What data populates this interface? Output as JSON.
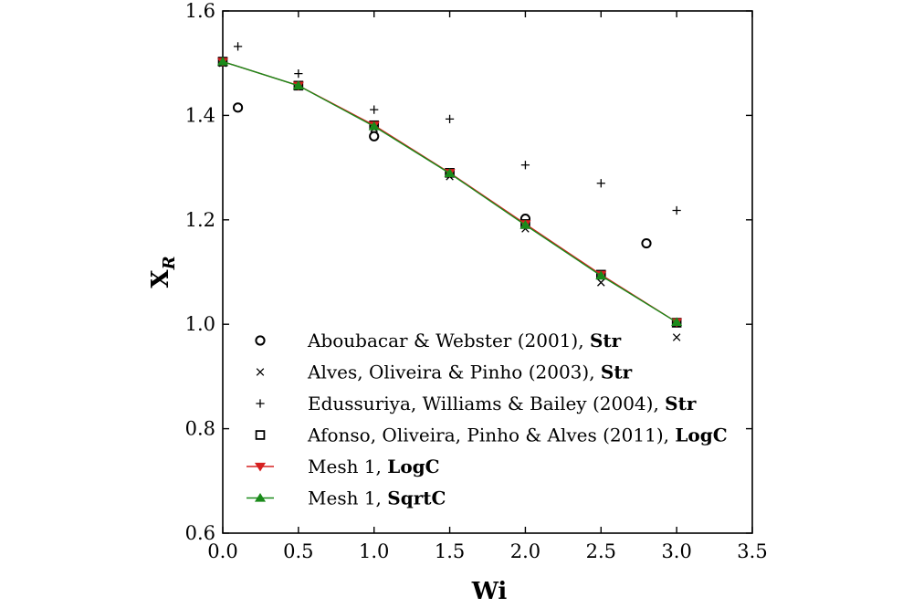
{
  "chart_data": {
    "type": "scatter",
    "xlabel": "Wi",
    "ylabel": "X",
    "ylabel_sub": "R",
    "xlim": [
      0,
      3.5
    ],
    "ylim": [
      0.6,
      1.6
    ],
    "x_ticks": [
      "0.0",
      "0.5",
      "1.0",
      "1.5",
      "2.0",
      "2.5",
      "3.0",
      "3.5"
    ],
    "y_ticks": [
      "0.6",
      "0.8",
      "1.0",
      "1.2",
      "1.4",
      "1.6"
    ],
    "grid": false,
    "legend_position": "lower-left",
    "series": [
      {
        "name": "Aboubacar & Webster (2001), ",
        "name_bold": "Str",
        "marker": "circle",
        "color": "#000000",
        "line": false,
        "points": [
          [
            0.1,
            1.415
          ],
          [
            1.0,
            1.36
          ],
          [
            2.0,
            1.202
          ],
          [
            2.8,
            1.155
          ]
        ]
      },
      {
        "name": "Alves, Oliveira & Pinho (2003), ",
        "name_bold": "Str",
        "marker": "x",
        "color": "#000000",
        "line": false,
        "points": [
          [
            0.0,
            1.5
          ],
          [
            0.5,
            1.457
          ],
          [
            1.0,
            1.375
          ],
          [
            1.5,
            1.283
          ],
          [
            2.0,
            1.183
          ],
          [
            2.5,
            1.08
          ],
          [
            3.0,
            0.975
          ]
        ]
      },
      {
        "name": "Edussuriya, Williams & Bailey (2004), ",
        "name_bold": "Str",
        "marker": "plus",
        "color": "#000000",
        "line": false,
        "points": [
          [
            0.1,
            1.532
          ],
          [
            0.5,
            1.48
          ],
          [
            1.0,
            1.411
          ],
          [
            1.5,
            1.393
          ],
          [
            2.0,
            1.305
          ],
          [
            2.5,
            1.27
          ],
          [
            3.0,
            1.218
          ]
        ]
      },
      {
        "name": "Afonso, Oliveira, Pinho & Alves (2011), ",
        "name_bold": "LogC",
        "marker": "square",
        "color": "#000000",
        "line": false,
        "points": [
          [
            0.0,
            1.503
          ],
          [
            0.5,
            1.457
          ],
          [
            1.0,
            1.381
          ],
          [
            1.5,
            1.29
          ],
          [
            2.0,
            1.192
          ],
          [
            2.5,
            1.095
          ],
          [
            3.0,
            1.003
          ]
        ]
      },
      {
        "name": "Mesh 1, ",
        "name_bold": "LogC",
        "marker": "triangle-down",
        "color": "#d62020",
        "line": true,
        "points": [
          [
            0.0,
            1.503
          ],
          [
            0.5,
            1.457
          ],
          [
            1.0,
            1.381
          ],
          [
            1.5,
            1.29
          ],
          [
            2.0,
            1.192
          ],
          [
            2.5,
            1.095
          ],
          [
            3.0,
            1.004
          ]
        ]
      },
      {
        "name": "Mesh 1, ",
        "name_bold": "SqrtC",
        "marker": "triangle-up",
        "color": "#1a8a1a",
        "line": true,
        "points": [
          [
            0.0,
            1.503
          ],
          [
            0.5,
            1.457
          ],
          [
            1.0,
            1.379
          ],
          [
            1.5,
            1.289
          ],
          [
            2.0,
            1.19
          ],
          [
            2.5,
            1.093
          ],
          [
            3.0,
            1.004
          ]
        ]
      }
    ]
  }
}
